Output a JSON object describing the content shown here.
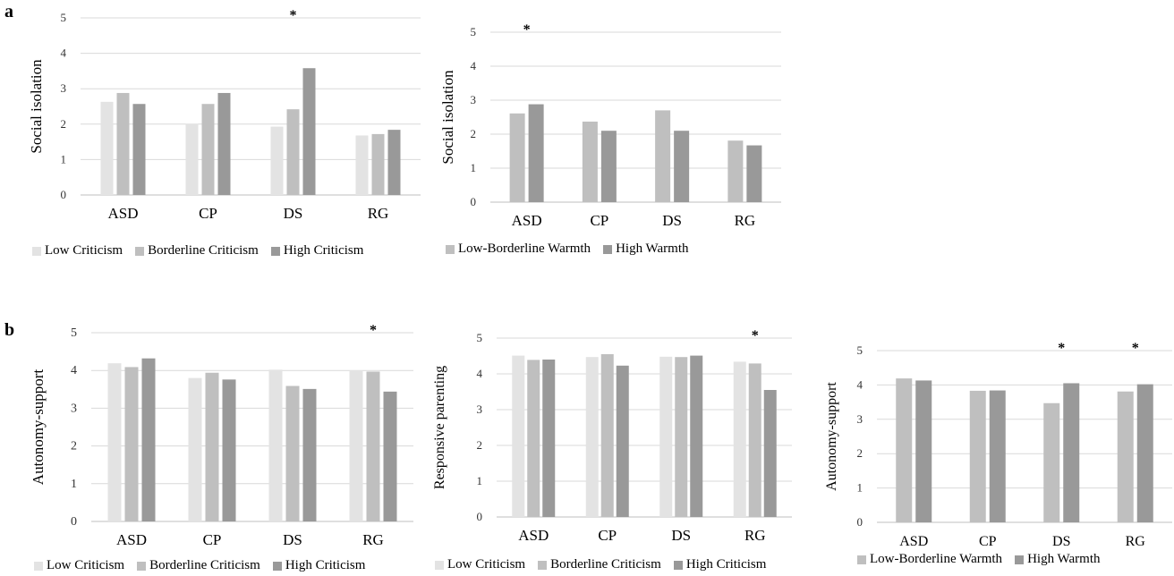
{
  "panels": [
    {
      "label": "a"
    },
    {
      "label": "b"
    }
  ],
  "chart_data": [
    {
      "type": "bar",
      "panel": "a",
      "ylabel": "Social isolation",
      "ylim": [
        0,
        5
      ],
      "yticks": [
        0,
        1,
        2,
        3,
        4,
        5
      ],
      "grid": true,
      "legend_position": "bottom",
      "categories": [
        "ASD",
        "CP",
        "DS",
        "RG"
      ],
      "series": [
        {
          "name": "Low Criticism",
          "color": "#e3e3e3",
          "values": [
            2.63,
            2.01,
            1.93,
            1.68
          ]
        },
        {
          "name": "Borderline Criticism",
          "color": "#bfbfbf",
          "values": [
            2.88,
            2.57,
            2.42,
            1.72
          ]
        },
        {
          "name": "High Criticism",
          "color": "#999999",
          "values": [
            2.57,
            2.88,
            3.58,
            1.84
          ]
        }
      ],
      "annotations": [
        {
          "category": "DS",
          "text": "*"
        }
      ]
    },
    {
      "type": "bar",
      "panel": "a",
      "ylabel": "Social isolation",
      "ylim": [
        0,
        5
      ],
      "yticks": [
        0,
        1,
        2,
        3,
        4,
        5
      ],
      "grid": true,
      "legend_position": "bottom",
      "categories": [
        "ASD",
        "CP",
        "DS",
        "RG"
      ],
      "series": [
        {
          "name": "Low-Borderline Warmth",
          "color": "#bfbfbf",
          "values": [
            2.61,
            2.37,
            2.7,
            1.81
          ]
        },
        {
          "name": "High Warmth",
          "color": "#999999",
          "values": [
            2.88,
            2.1,
            2.1,
            1.67
          ]
        }
      ],
      "annotations": [
        {
          "category": "ASD",
          "text": "*"
        }
      ]
    },
    {
      "type": "bar",
      "panel": "b",
      "ylabel": "Autonomy-support",
      "ylim": [
        0,
        5
      ],
      "yticks": [
        0,
        1,
        2,
        3,
        4,
        5
      ],
      "grid": true,
      "legend_position": "bottom",
      "categories": [
        "ASD",
        "CP",
        "DS",
        "RG"
      ],
      "series": [
        {
          "name": "Low Criticism",
          "color": "#e3e3e3",
          "values": [
            4.19,
            3.8,
            4.02,
            3.98
          ]
        },
        {
          "name": "Borderline Criticism",
          "color": "#bfbfbf",
          "values": [
            4.09,
            3.94,
            3.59,
            3.97
          ]
        },
        {
          "name": "High Criticism",
          "color": "#999999",
          "values": [
            4.32,
            3.76,
            3.51,
            3.44
          ]
        }
      ],
      "annotations": [
        {
          "category": "RG",
          "text": "*"
        }
      ]
    },
    {
      "type": "bar",
      "panel": "b",
      "ylabel": "Responsive parenting",
      "ylim": [
        0,
        5
      ],
      "yticks": [
        0,
        1,
        2,
        3,
        4,
        5
      ],
      "grid": true,
      "legend_position": "bottom",
      "categories": [
        "ASD",
        "CP",
        "DS",
        "RG"
      ],
      "series": [
        {
          "name": "Low Criticism",
          "color": "#e3e3e3",
          "values": [
            4.51,
            4.47,
            4.48,
            4.34
          ]
        },
        {
          "name": "Borderline Criticism",
          "color": "#bfbfbf",
          "values": [
            4.39,
            4.55,
            4.47,
            4.29
          ]
        },
        {
          "name": "High Criticism",
          "color": "#999999",
          "values": [
            4.4,
            4.23,
            4.51,
            3.55
          ]
        }
      ],
      "annotations": [
        {
          "category": "RG",
          "text": "*"
        }
      ]
    },
    {
      "type": "bar",
      "panel": "b",
      "ylabel": "Autonomy-support",
      "ylim": [
        0,
        5
      ],
      "yticks": [
        0,
        1,
        2,
        3,
        4,
        5
      ],
      "grid": true,
      "legend_position": "bottom",
      "categories": [
        "ASD",
        "CP",
        "DS",
        "RG"
      ],
      "series": [
        {
          "name": "Low-Borderline Warmth",
          "color": "#bfbfbf",
          "values": [
            4.19,
            3.83,
            3.47,
            3.81
          ]
        },
        {
          "name": "High Warmth",
          "color": "#999999",
          "values": [
            4.13,
            3.84,
            4.05,
            4.02
          ]
        }
      ],
      "annotations": [
        {
          "category": "DS",
          "text": "*"
        },
        {
          "category": "RG",
          "text": "*"
        }
      ]
    }
  ]
}
